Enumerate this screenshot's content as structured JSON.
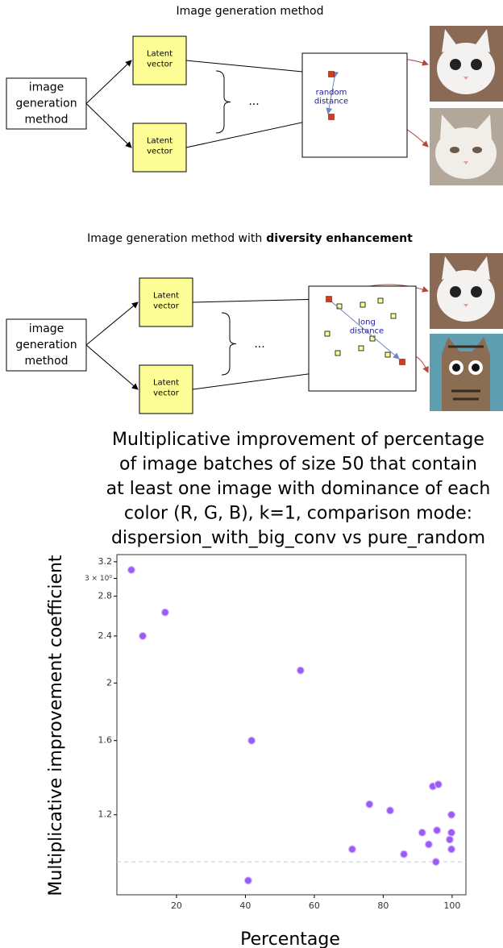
{
  "diagrams": [
    {
      "title": "Image generation method",
      "input_box": [
        "image",
        "generation",
        "method"
      ],
      "latent_vectors": [
        [
          "Latent",
          "vector"
        ],
        [
          "Latent",
          "vector"
        ]
      ],
      "ellipsis": "...",
      "distance_label": [
        "random",
        "distance"
      ]
    },
    {
      "title": "Image generation method with",
      "title_emphasis": "diversity enhancement",
      "input_box": [
        "image",
        "generation",
        "method"
      ],
      "latent_vectors": [
        [
          "Latent",
          "vector"
        ],
        [
          "Latent",
          "vector"
        ]
      ],
      "ellipsis": "...",
      "distance_label": [
        "long",
        "distance"
      ]
    }
  ],
  "chart_data": {
    "type": "scatter",
    "title": [
      "Multiplicative improvement of percentage",
      "of image batches of size 50 that contain",
      "at least one image with dominance of each",
      "color (R, G, B),  k=1, comparison mode:",
      "dispersion_with_big_conv vs pure_random"
    ],
    "xlabel": "Percentage",
    "ylabel": "Multiplicative improvement coefficient",
    "y_scale": "log",
    "color": "#9b5cf6",
    "reference_line": 1,
    "xlim": [
      2.7,
      104
    ],
    "xticks": [
      20,
      40,
      60,
      80,
      100
    ],
    "ylim": [
      0.88,
      3.29
    ],
    "yticks": [
      1.2,
      1.6,
      2.0,
      2.4,
      2.8,
      {
        "value": 3,
        "label": "3 × 10⁰"
      },
      3.2
    ],
    "x": [
      6.9,
      10.2,
      16.7,
      56.0,
      41.8,
      40.8,
      71.0,
      76.0,
      82.0,
      86.0,
      91.3,
      93.2,
      94.4,
      96.0,
      95.6,
      95.3,
      99.3,
      99.8,
      99.8,
      99.8
    ],
    "values": [
      3.1,
      2.4,
      2.63,
      2.1,
      1.6,
      0.93,
      1.05,
      1.25,
      1.22,
      1.03,
      1.12,
      1.07,
      1.34,
      1.35,
      1.13,
      1.0,
      1.09,
      1.2,
      1.12,
      1.05
    ]
  }
}
